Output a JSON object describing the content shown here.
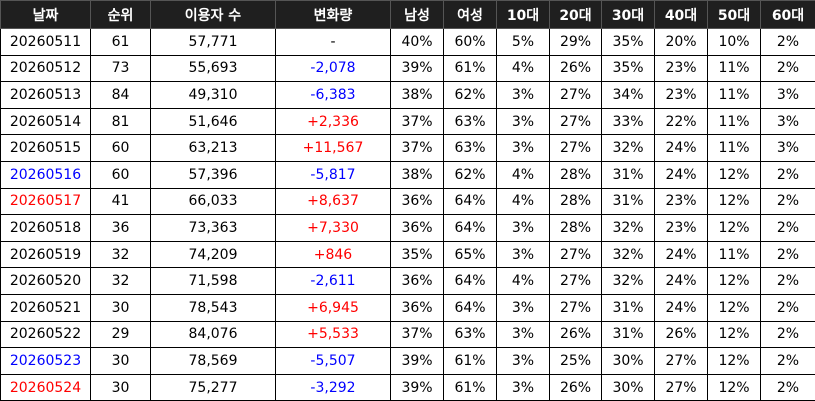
{
  "table": {
    "header": [
      "날짜",
      "순위",
      "이용자 수",
      "변화량",
      "남성",
      "여성",
      "10대",
      "20대",
      "30대",
      "40대",
      "50대",
      "60대"
    ],
    "rows": [
      [
        "20260511",
        "61",
        "57,771",
        "-",
        "40%",
        "60%",
        "5%",
        "29%",
        "35%",
        "20%",
        "10%",
        "2%"
      ],
      [
        "20260512",
        "73",
        "55,693",
        "-2,078",
        "39%",
        "61%",
        "4%",
        "26%",
        "35%",
        "23%",
        "11%",
        "2%"
      ],
      [
        "20260513",
        "84",
        "49,310",
        "-6,383",
        "38%",
        "62%",
        "3%",
        "27%",
        "34%",
        "23%",
        "11%",
        "3%"
      ],
      [
        "20260514",
        "81",
        "51,646",
        "+2,336",
        "37%",
        "63%",
        "3%",
        "27%",
        "33%",
        "22%",
        "11%",
        "3%"
      ],
      [
        "20260515",
        "60",
        "63,213",
        "+11,567",
        "37%",
        "63%",
        "3%",
        "27%",
        "32%",
        "24%",
        "11%",
        "3%"
      ],
      [
        "20260516",
        "60",
        "57,396",
        "-5,817",
        "38%",
        "62%",
        "4%",
        "28%",
        "31%",
        "24%",
        "12%",
        "2%"
      ],
      [
        "20260517",
        "41",
        "66,033",
        "+8,637",
        "36%",
        "64%",
        "4%",
        "28%",
        "31%",
        "23%",
        "12%",
        "2%"
      ],
      [
        "20260518",
        "36",
        "73,363",
        "+7,330",
        "36%",
        "64%",
        "3%",
        "28%",
        "32%",
        "23%",
        "12%",
        "2%"
      ],
      [
        "20260519",
        "32",
        "74,209",
        "+846",
        "35%",
        "65%",
        "3%",
        "27%",
        "32%",
        "24%",
        "11%",
        "2%"
      ],
      [
        "20260520",
        "32",
        "71,598",
        "-2,611",
        "36%",
        "64%",
        "4%",
        "27%",
        "32%",
        "24%",
        "12%",
        "2%"
      ],
      [
        "20260521",
        "30",
        "78,543",
        "+6,945",
        "36%",
        "64%",
        "3%",
        "27%",
        "31%",
        "24%",
        "12%",
        "2%"
      ],
      [
        "20260522",
        "29",
        "84,076",
        "+5,533",
        "37%",
        "63%",
        "3%",
        "26%",
        "31%",
        "26%",
        "12%",
        "2%"
      ],
      [
        "20260523",
        "30",
        "78,569",
        "-5,507",
        "39%",
        "61%",
        "3%",
        "25%",
        "30%",
        "27%",
        "12%",
        "2%"
      ],
      [
        "20260524",
        "30",
        "75,277",
        "-3,292",
        "39%",
        "61%",
        "3%",
        "26%",
        "30%",
        "27%",
        "12%",
        "2%"
      ]
    ],
    "date_colors": [
      "#000000",
      "#000000",
      "#000000",
      "#000000",
      "#000000",
      "#0000ff",
      "#ff0000",
      "#000000",
      "#000000",
      "#000000",
      "#000000",
      "#000000",
      "#0000ff",
      "#ff0000"
    ],
    "change_colors": [
      "#000000",
      "#0000ff",
      "#0000ff",
      "#ff0000",
      "#ff0000",
      "#0000ff",
      "#ff0000",
      "#ff0000",
      "#ff0000",
      "#0000ff",
      "#ff0000",
      "#ff0000",
      "#0000ff",
      "#0000ff"
    ]
  }
}
